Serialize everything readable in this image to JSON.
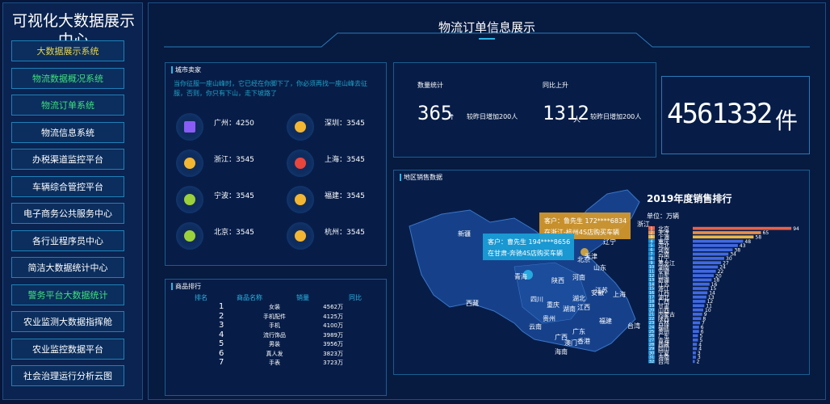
{
  "sidebar": {
    "title": "可视化大数据展示中心",
    "items": [
      "大数据展示系统",
      "物流数据概况系统",
      "物流订单系统",
      "物流信息系统",
      "办税渠道监控平台",
      "车辆综合管控平台",
      "电子商务公共服务中心",
      "各行业程序员中心",
      "简洁大数据统计中心",
      "警务平台大数据统计",
      "农业监测大数据指挥舱",
      "农业监控数据平台",
      "社会治理运行分析云图"
    ]
  },
  "header": {
    "title": "物流订单信息展示"
  },
  "city_panel": {
    "title": "城市卖家",
    "quote": "当你征服一座山峰时，它已经在你脚下了，你必须再找一座山峰去征服，否则，你只有下山，走下坡路了",
    "cities": [
      "广州：4250",
      "深圳：3545",
      "浙江：3545",
      "上海：3545",
      "宁波：3545",
      "福建：3545",
      "北京：3545",
      "杭州：3545"
    ]
  },
  "goods_panel": {
    "title": "商品排行",
    "columns": [
      "排名",
      "商品名称",
      "销量",
      "同比"
    ],
    "rows": [
      [
        "1",
        "女装",
        "4562万"
      ],
      [
        "2",
        "手机配件",
        "4125万"
      ],
      [
        "3",
        "手机",
        "4100万"
      ],
      [
        "4",
        "流行饰品",
        "3989万"
      ],
      [
        "5",
        "男装",
        "3956万"
      ],
      [
        "6",
        "真人发",
        "3823万"
      ],
      [
        "7",
        "手表",
        "3723万"
      ]
    ]
  },
  "stats": {
    "count_label": "数量统计",
    "count": 365,
    "count_arrow": "↑",
    "count_note": "较昨日增加200人",
    "yoy_label": "同比上升",
    "yoy": 1312,
    "yoy_unit": "人",
    "yoy_note": "较昨日增加200人",
    "total": 4561332,
    "total_unit": "件"
  },
  "map_panel": {
    "title": "地区销售数据",
    "provinces": [
      "新疆",
      "西藏",
      "青海",
      "四川",
      "陕西",
      "河南",
      "山东",
      "北京",
      "天津",
      "辽宁",
      "湖北",
      "安徽",
      "江苏",
      "上海",
      "重庆",
      "湖南",
      "江西",
      "贵州",
      "福建",
      "云南",
      "广西",
      "广东",
      "台湾",
      "海南",
      "澳门",
      "香港",
      "浙江"
    ],
    "tooltips": [
      {
        "line1": "客户：鲁先生 172****6834",
        "line2": "在浙江-杭州4S店购买车辆"
      },
      {
        "line1": "客户：曹先生 194****8656",
        "line2": "在甘肃-奔驰4S店购买车辆"
      }
    ]
  },
  "chart_data": {
    "type": "bar",
    "orientation": "horizontal",
    "title": "2019年度销售排行",
    "subtitle": "单位：万辆",
    "categories": [
      "北京",
      "天津",
      "上海",
      "重庆",
      "河北",
      "河南",
      "云南",
      "辽宁",
      "黑龙江",
      "湖南",
      "安徽",
      "山东",
      "新疆",
      "江苏",
      "浙江",
      "江西",
      "湖北",
      "广西",
      "甘肃",
      "山西",
      "内蒙古",
      "陕西",
      "吉林",
      "福建",
      "贵州",
      "广东",
      "青海",
      "西藏",
      "四川",
      "宁夏",
      "海南",
      "台湾"
    ],
    "ranks": [
      "1",
      "2",
      "3",
      "4",
      "5",
      "6",
      "7",
      "8",
      "9",
      "10",
      "11",
      "12",
      "13",
      "14",
      "15",
      "16",
      "17",
      "18",
      "19",
      "20",
      "21",
      "22",
      "23",
      "24",
      "25",
      "26",
      "27",
      "28",
      "29",
      "30",
      "31",
      "32"
    ],
    "values": [
      94,
      65,
      58,
      48,
      43,
      38,
      34,
      30,
      27,
      24,
      22,
      20,
      18,
      16,
      15,
      14,
      13,
      12,
      11,
      10,
      9,
      8,
      7,
      6,
      6,
      5,
      5,
      4,
      4,
      3,
      3,
      2
    ],
    "xlim": [
      0,
      100
    ],
    "color": "#4169e1",
    "top_colors": [
      "#e8624a",
      "#e8904a",
      "#e8b84a"
    ]
  }
}
